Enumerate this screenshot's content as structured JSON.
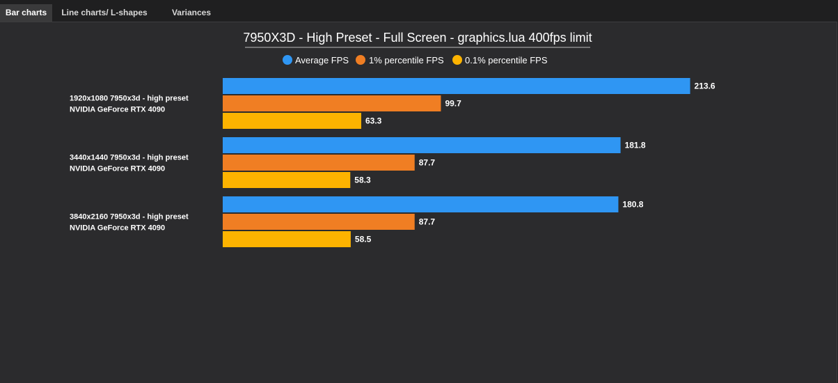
{
  "tabs": [
    {
      "label": "Bar charts",
      "active": true
    },
    {
      "label": "Line charts/ L-shapes",
      "active": false
    },
    {
      "label": "Variances",
      "active": false
    }
  ],
  "chart_data": {
    "type": "bar",
    "orientation": "horizontal",
    "title": "7950X3D - High Preset - Full Screen - graphics.lua 400fps limit",
    "legend_position": "top-center",
    "grid": false,
    "xlim": [
      0,
      250
    ],
    "categories": [
      [
        "1920x1080 7950x3d - high preset",
        "NVIDIA GeForce RTX 4090"
      ],
      [
        "3440x1440 7950x3d - high preset",
        "NVIDIA GeForce RTX 4090"
      ],
      [
        "3840x2160 7950x3d - high preset",
        "NVIDIA GeForce RTX 4090"
      ]
    ],
    "series": [
      {
        "name": "Average FPS",
        "color": "#2f96f3",
        "values": [
          213.6,
          181.8,
          180.8
        ]
      },
      {
        "name": "1% percentile FPS",
        "color": "#f07e23",
        "values": [
          99.7,
          87.7,
          87.7
        ]
      },
      {
        "name": "0.1% percentile FPS",
        "color": "#fdb300",
        "values": [
          63.3,
          58.3,
          58.5
        ]
      }
    ]
  }
}
